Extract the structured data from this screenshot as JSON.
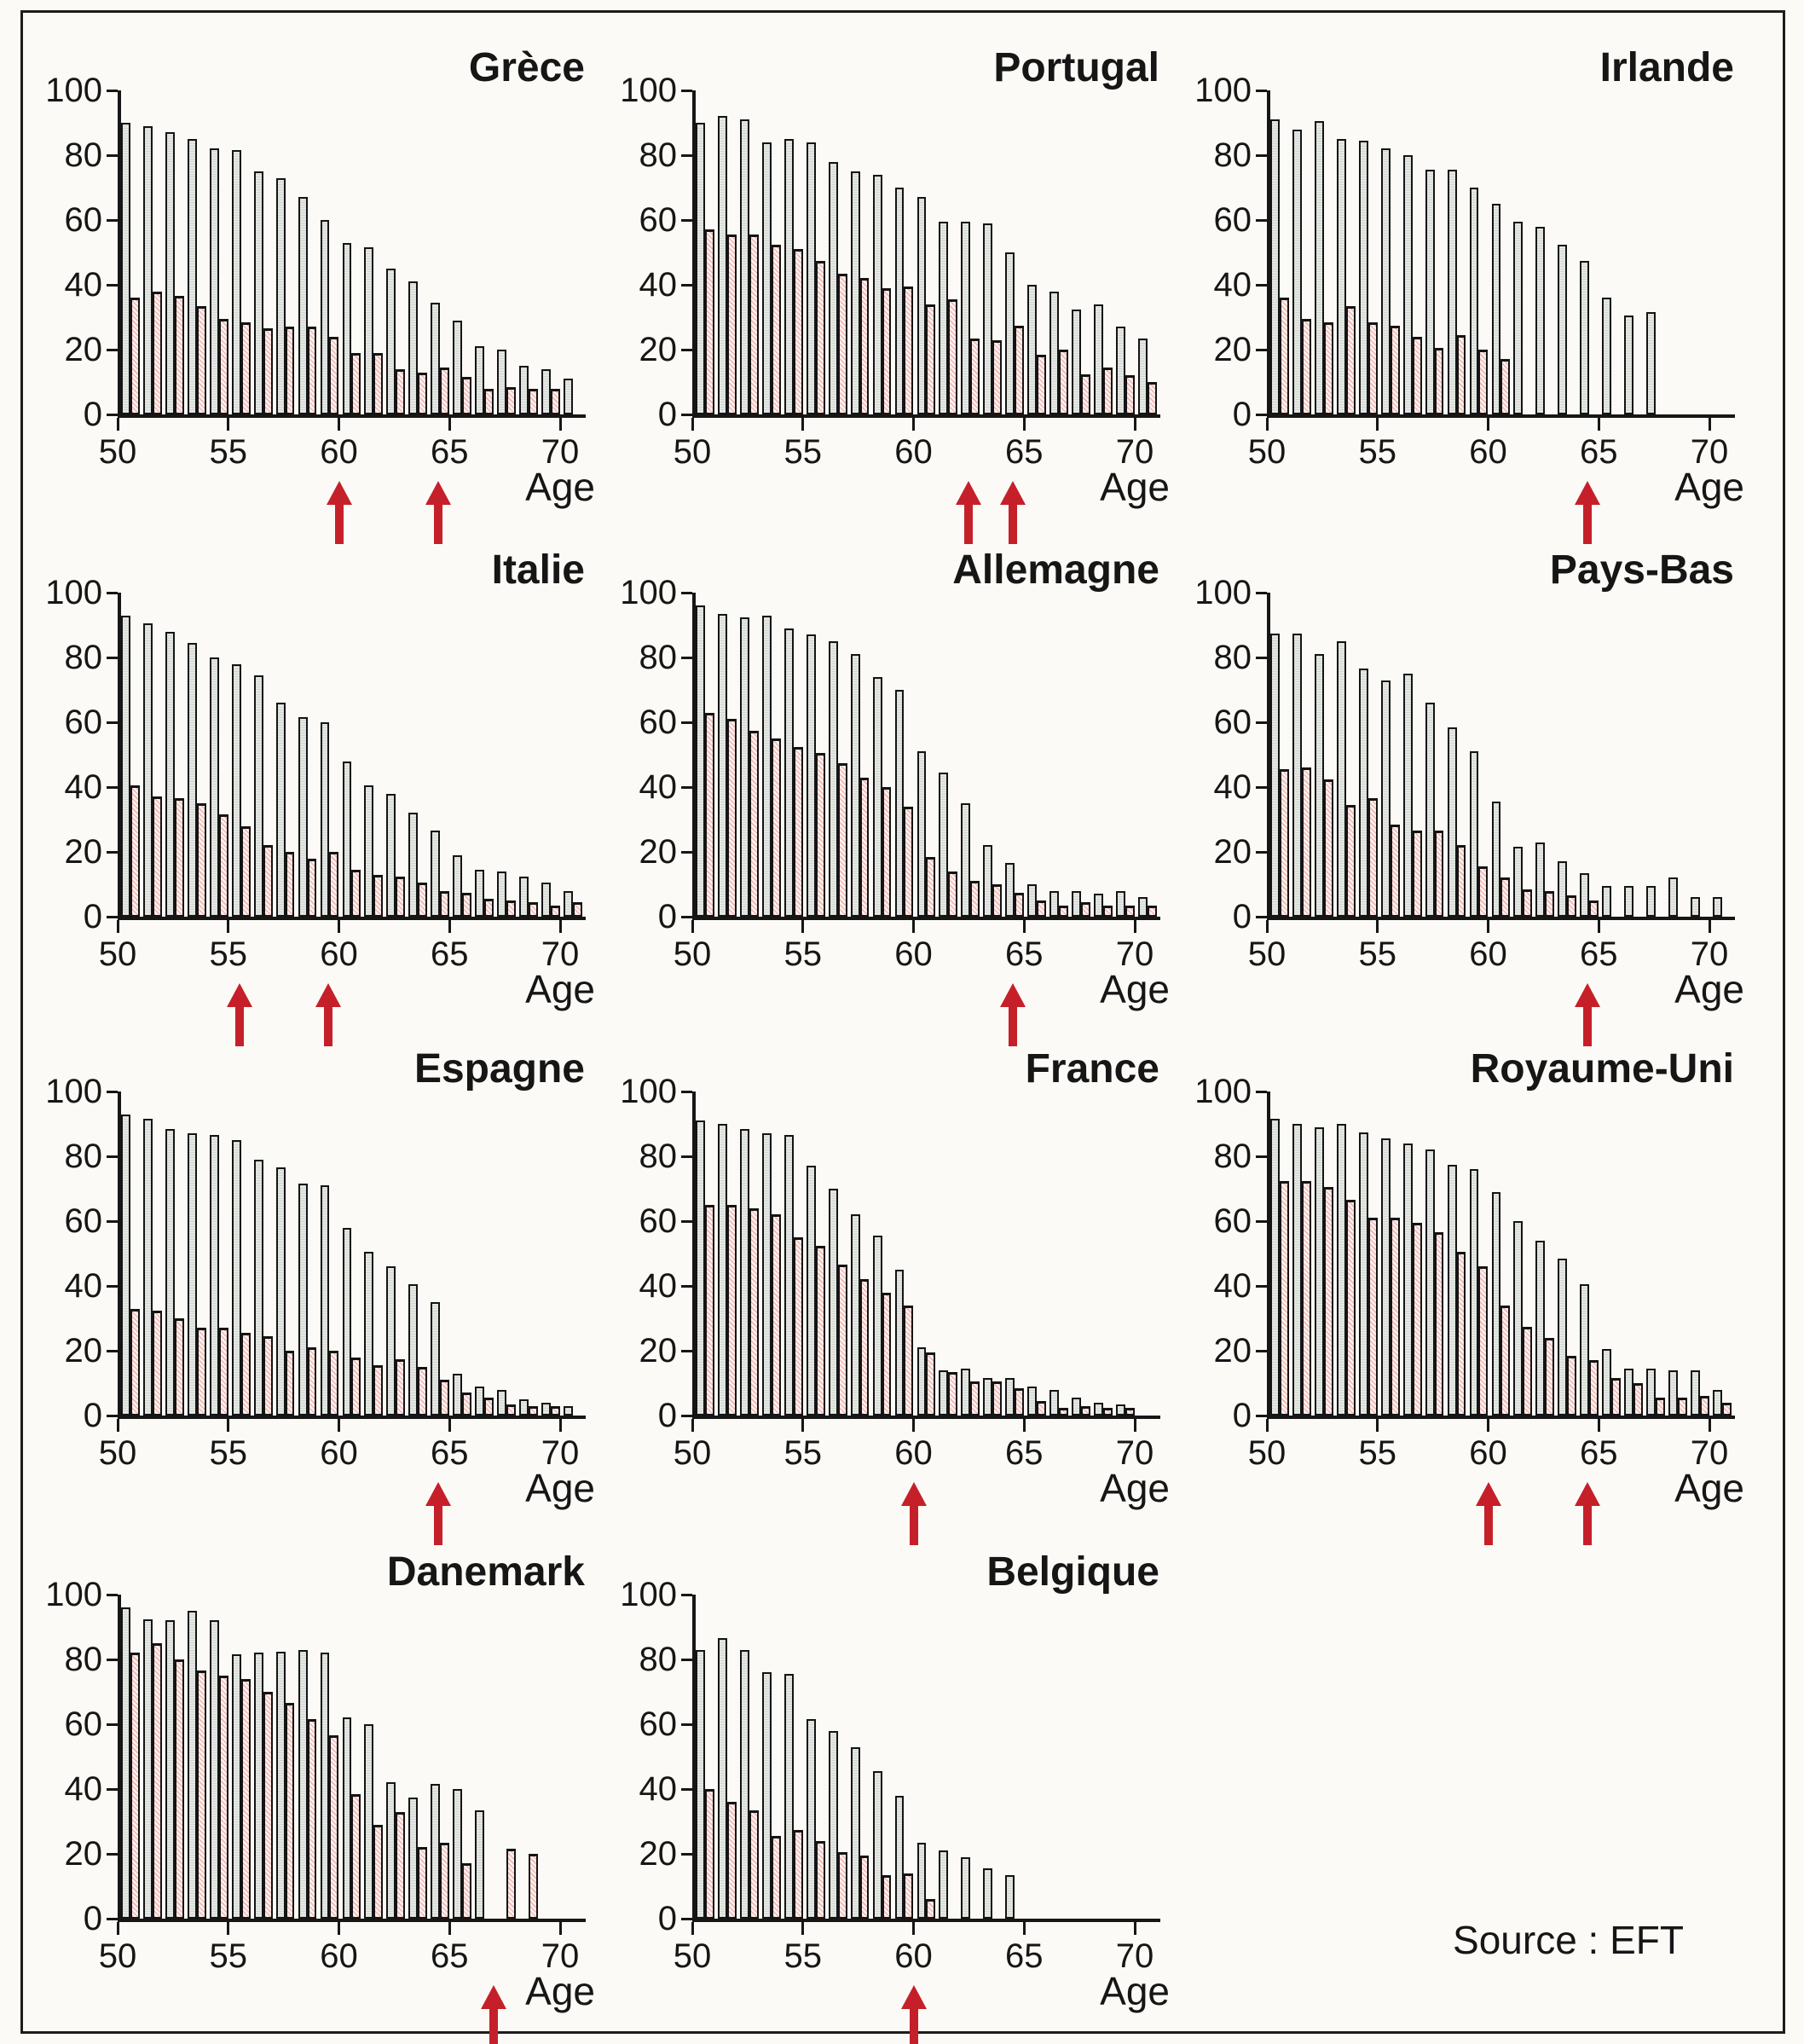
{
  "figure": {
    "source_label": "Source : EFT",
    "age_axis_label": "Age",
    "y_ticks": [
      0,
      20,
      40,
      60,
      80,
      100
    ],
    "x_ticks": [
      50,
      55,
      60,
      65,
      70
    ],
    "colors": {
      "ink": "#161616",
      "gray_bar_fill": "#e4e7e3",
      "pink_bar_fill": "#fdf1ef",
      "pink_hatch": "#e07670",
      "arrow_red": "#c5202a",
      "background": "#fbfaf6"
    }
  },
  "chart_data": [
    {
      "type": "bar",
      "title": "Grèce",
      "age_start": 50,
      "ylim": [
        0,
        100
      ],
      "arrow_ages": [
        60,
        64.5
      ],
      "series": [
        {
          "name": "gray-bars",
          "values": [
            90,
            89,
            87,
            85,
            82,
            81.5,
            75,
            73,
            67,
            60,
            53,
            51.5,
            45,
            41,
            34.5,
            29,
            21,
            20,
            15,
            14,
            11
          ]
        },
        {
          "name": "pink-bars",
          "values": [
            36,
            38,
            36.5,
            33.5,
            29.5,
            28.5,
            26.5,
            27,
            27,
            24,
            19,
            19,
            14,
            13,
            14.5,
            11.5,
            8,
            8.5,
            8,
            8,
            null
          ]
        }
      ]
    },
    {
      "type": "bar",
      "title": "Portugal",
      "age_start": 50,
      "ylim": [
        0,
        100
      ],
      "arrow_ages": [
        62.5,
        64.5
      ],
      "series": [
        {
          "name": "gray-bars",
          "values": [
            90,
            92,
            91,
            84,
            85,
            84,
            78,
            75,
            74,
            70,
            67,
            59.5,
            59.5,
            59,
            50,
            40,
            38,
            32.5,
            34,
            27,
            23.5
          ]
        },
        {
          "name": "pink-bars",
          "values": [
            57,
            55.5,
            55.5,
            52.5,
            51,
            47.5,
            43.5,
            42,
            39,
            39.5,
            34,
            35.5,
            23.5,
            23,
            27.5,
            18.5,
            20,
            12.5,
            14.5,
            12,
            10
          ]
        }
      ]
    },
    {
      "type": "bar",
      "title": "Irlande",
      "age_start": 50,
      "ylim": [
        0,
        100
      ],
      "arrow_ages": [
        64.5
      ],
      "series": [
        {
          "name": "gray-bars",
          "values": [
            91,
            88,
            90.5,
            85,
            84.5,
            82,
            80,
            75.5,
            75.5,
            70,
            65,
            59.5,
            58,
            52.5,
            47.5,
            36,
            30.5,
            31.5
          ]
        },
        {
          "name": "pink-bars",
          "values": [
            36,
            29.5,
            28.5,
            33.5,
            28.5,
            27.5,
            24,
            20.5,
            24.5,
            20,
            17,
            null,
            null,
            null,
            null,
            null,
            null,
            null
          ]
        }
      ]
    },
    {
      "type": "bar",
      "title": "Italie",
      "age_start": 50,
      "ylim": [
        0,
        100
      ],
      "arrow_ages": [
        55.5,
        59.5
      ],
      "series": [
        {
          "name": "gray-bars",
          "values": [
            93,
            90.5,
            88,
            84.5,
            80,
            78,
            74.5,
            66,
            61.5,
            60,
            48,
            40.5,
            38,
            32,
            26.5,
            19,
            14.5,
            14,
            12.5,
            10.5,
            8
          ]
        },
        {
          "name": "pink-bars",
          "values": [
            40.5,
            37,
            36.5,
            35,
            31.5,
            28,
            22,
            20,
            18,
            20,
            14.5,
            13,
            12.5,
            10.5,
            8,
            7.5,
            5.5,
            5,
            4.5,
            3.5,
            4.5
          ]
        }
      ]
    },
    {
      "type": "bar",
      "title": "Allemagne",
      "age_start": 50,
      "ylim": [
        0,
        100
      ],
      "arrow_ages": [
        64.5
      ],
      "series": [
        {
          "name": "gray-bars",
          "values": [
            96,
            93.5,
            92.5,
            93,
            89,
            87,
            85,
            81,
            74,
            70,
            51,
            44.5,
            35,
            22,
            16.5,
            10,
            8,
            8,
            7,
            8,
            6
          ]
        },
        {
          "name": "pink-bars",
          "values": [
            63,
            61,
            57.5,
            55,
            52.5,
            50.5,
            47.5,
            43,
            40,
            34,
            18.5,
            14,
            11,
            10,
            7.5,
            5,
            3.5,
            4.5,
            3.5,
            3.5,
            3.5
          ]
        }
      ]
    },
    {
      "type": "bar",
      "title": "Pays-Bas",
      "age_start": 50,
      "ylim": [
        0,
        100
      ],
      "arrow_ages": [
        64.5
      ],
      "series": [
        {
          "name": "gray-bars",
          "values": [
            87.5,
            87.5,
            81,
            85,
            76.5,
            73,
            75,
            66,
            58.5,
            51,
            35.5,
            21.5,
            23,
            17,
            13.5,
            9.5,
            9.5,
            9.5,
            12,
            6,
            6
          ]
        },
        {
          "name": "pink-bars",
          "values": [
            45.5,
            46,
            42.5,
            34.5,
            36.5,
            28.5,
            26.5,
            26.5,
            22,
            15.5,
            12,
            8.5,
            8,
            6.5,
            5,
            null,
            null,
            null,
            null,
            null,
            null
          ]
        }
      ]
    },
    {
      "type": "bar",
      "title": "Espagne",
      "age_start": 50,
      "ylim": [
        0,
        100
      ],
      "arrow_ages": [
        64.5
      ],
      "series": [
        {
          "name": "gray-bars",
          "values": [
            93,
            91.5,
            88.5,
            87,
            86.5,
            85,
            79,
            76.5,
            71.5,
            71,
            58,
            50.5,
            46,
            40.5,
            35,
            13,
            9,
            8,
            5,
            4,
            3
          ]
        },
        {
          "name": "pink-bars",
          "values": [
            33,
            32.5,
            30,
            27,
            27,
            25.5,
            24.5,
            20,
            21,
            20,
            18,
            15.5,
            17.5,
            15,
            11,
            7,
            5.5,
            3.5,
            3,
            3,
            null
          ]
        }
      ]
    },
    {
      "type": "bar",
      "title": "France",
      "age_start": 50,
      "ylim": [
        0,
        100
      ],
      "arrow_ages": [
        60
      ],
      "series": [
        {
          "name": "gray-bars",
          "values": [
            91,
            90,
            88.5,
            87,
            86.5,
            77,
            70,
            62,
            55.5,
            45,
            21,
            14,
            14.5,
            11.5,
            11.5,
            9,
            8,
            5.5,
            4,
            3.5
          ]
        },
        {
          "name": "pink-bars",
          "values": [
            65,
            65,
            64,
            62,
            55,
            52.5,
            46.5,
            42,
            38,
            34,
            19.5,
            13.5,
            10.5,
            10.5,
            8.5,
            4.5,
            2.5,
            3,
            2.5,
            2.5
          ]
        }
      ]
    },
    {
      "type": "bar",
      "title": "Royaume-Uni",
      "age_start": 50,
      "ylim": [
        0,
        100
      ],
      "arrow_ages": [
        60,
        64.5
      ],
      "series": [
        {
          "name": "gray-bars",
          "values": [
            91.5,
            90,
            89,
            90,
            87.5,
            85.5,
            84,
            82,
            77.5,
            76,
            69,
            60,
            54,
            48.5,
            40.5,
            20.5,
            14.5,
            14.5,
            14,
            14,
            8
          ]
        },
        {
          "name": "pink-bars",
          "values": [
            72.5,
            72.5,
            70.5,
            66.5,
            61,
            61,
            59.5,
            56.5,
            50.5,
            46,
            34,
            27.5,
            24,
            18.5,
            17,
            11.5,
            10,
            5.5,
            5.5,
            6,
            4
          ]
        }
      ]
    },
    {
      "type": "bar",
      "title": "Danemark",
      "age_start": 50,
      "ylim": [
        0,
        100
      ],
      "arrow_ages": [
        67
      ],
      "series": [
        {
          "name": "gray-bars",
          "values": [
            96,
            92.5,
            92,
            95,
            92,
            81.5,
            82,
            82.5,
            83,
            82,
            62,
            60,
            42,
            37.5,
            41.5,
            40,
            33.5,
            null,
            null
          ]
        },
        {
          "name": "pink-bars",
          "values": [
            82,
            85,
            80,
            76.5,
            75,
            74,
            70,
            66.5,
            61.5,
            56.5,
            38.5,
            29,
            33,
            22,
            23.5,
            17,
            null,
            21.5,
            20
          ]
        }
      ]
    },
    {
      "type": "bar",
      "title": "Belgique",
      "age_start": 50,
      "ylim": [
        0,
        100
      ],
      "arrow_ages": [
        60
      ],
      "series": [
        {
          "name": "gray-bars",
          "values": [
            83,
            86.5,
            83,
            76,
            75.5,
            61.5,
            58,
            53,
            45.5,
            38,
            23.5,
            21,
            19,
            15.5,
            13.5
          ]
        },
        {
          "name": "pink-bars",
          "values": [
            40,
            36,
            33.5,
            25.5,
            27.5,
            24,
            20.5,
            19.5,
            13.5,
            14,
            6,
            null,
            null,
            null,
            null
          ]
        }
      ]
    }
  ]
}
